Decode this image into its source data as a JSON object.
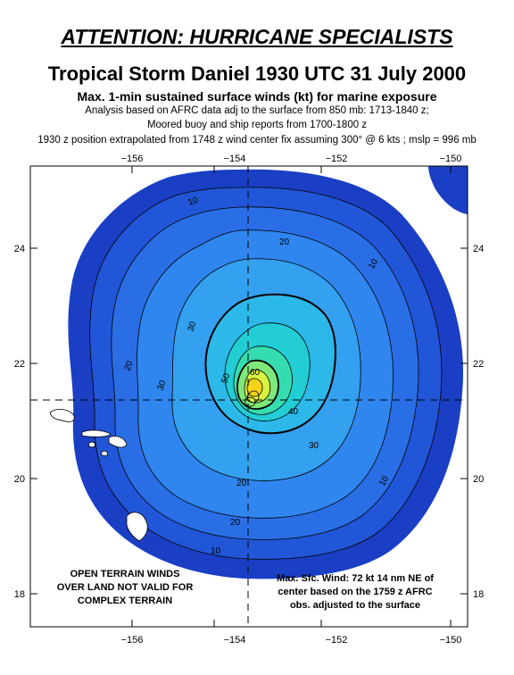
{
  "header": {
    "attention": "ATTENTION: HURRICANE SPECIALISTS",
    "title": "Tropical Storm Daniel  1930 UTC 31 July 2000",
    "subtitle1": "Max. 1-min sustained surface winds (kt) for marine exposure",
    "subtitle2": "Analysis based on AFRC data adj to the surface from 850 mb:  1713-1840 z;",
    "subtitle3": "Moored buoy and ship reports from  1700-1800 z",
    "subtitle4": "1930 z position extrapolated from  1748 z wind center fix assuming 300° @ 6 kts ; mslp = 996 mb"
  },
  "axes": {
    "longitude_labels": [
      "−156",
      "−154",
      "−152",
      "−150"
    ],
    "latitude_labels": [
      "24",
      "22",
      "20",
      "18"
    ]
  },
  "contour_labels": [
    "10",
    "20",
    "30",
    "40",
    "50",
    "60"
  ],
  "colors": {
    "band_10": "#1a3fc4",
    "band_15": "#2256d8",
    "band_20": "#2a6ee6",
    "band_25": "#2f86ee",
    "band_30": "#34a0f0",
    "band_35": "#2cb8e8",
    "band_40": "#22cdd4",
    "band_45": "#35dcb0",
    "band_50": "#7ee87a",
    "band_55": "#d8f040",
    "band_60": "#f5d21a",
    "land": "#ffffff",
    "center_crosshair": "#000000"
  },
  "notes": {
    "terrain_line1": "OPEN TERRAIN WINDS",
    "terrain_line2": "OVER LAND NOT VALID FOR",
    "terrain_line3": "COMPLEX TERRAIN",
    "max_wind_line1": "Max. Sfc. Wind: 72 kt 14 nm NE of",
    "max_wind_line2": "center based on the 1759 z AFRC",
    "max_wind_line3": "obs. adjusted to the surface"
  }
}
